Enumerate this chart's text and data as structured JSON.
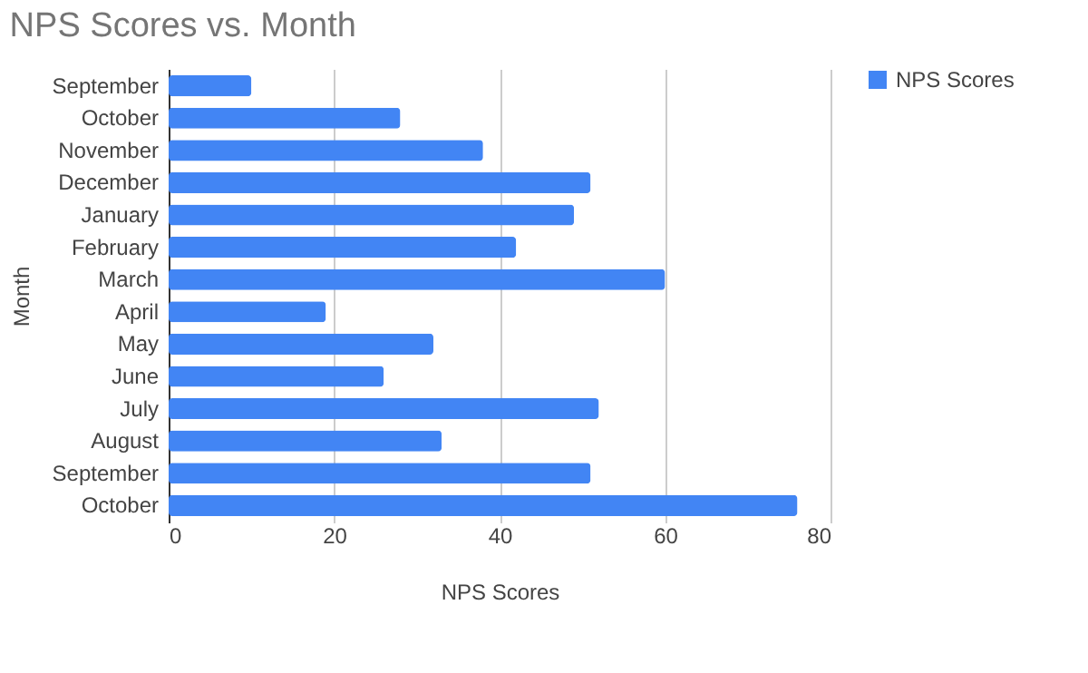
{
  "chart_data": {
    "type": "bar",
    "orientation": "horizontal",
    "title": "NPS Scores vs. Month",
    "xlabel": "NPS Scores",
    "ylabel": "Month",
    "categories": [
      "September",
      "October",
      "November",
      "December",
      "January",
      "February",
      "March",
      "April",
      "May",
      "June",
      "July",
      "August",
      "September",
      "October"
    ],
    "series": [
      {
        "name": "NPS Scores",
        "color": "#4285f4",
        "values": [
          10,
          28,
          38,
          51,
          49,
          42,
          60,
          19,
          32,
          26,
          52,
          33,
          51,
          76
        ]
      }
    ],
    "xlim": [
      0,
      80
    ],
    "xticks": [
      0,
      20,
      40,
      60,
      80
    ],
    "grid": "x",
    "legend": "top right"
  }
}
